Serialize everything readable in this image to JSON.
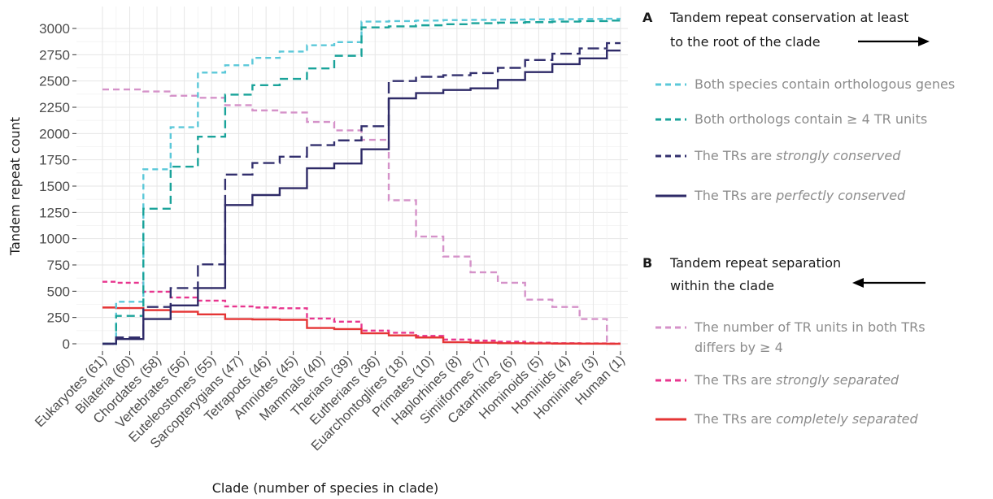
{
  "chart_data": {
    "type": "line",
    "step": true,
    "xlabel": "Clade (number of species in clade)",
    "ylabel": "Tandem repeat count",
    "ylim": [
      0,
      3000
    ],
    "yticks": [
      0,
      250,
      500,
      750,
      1000,
      1250,
      1500,
      1750,
      2000,
      2250,
      2500,
      2750,
      3000
    ],
    "grid": true,
    "categories": [
      "Eukaryotes (61)",
      "Bilateria (60)",
      "Chordates (58)",
      "Vertebrates (56)",
      "Euteleostomes (55)",
      "Sarcopterygians (47)",
      "Tetrapods (46)",
      "Amniotes (45)",
      "Mammals (40)",
      "Therians (39)",
      "Eutherians (36)",
      "Euarchontoglires (18)",
      "Primates (10)",
      "Haplorhines (8)",
      "Simiiformes (7)",
      "Catarrhines (6)",
      "Hominoids (5)",
      "Hominids (4)",
      "Hominines (3)",
      "Human (1)"
    ],
    "series": [
      {
        "name": "Both species contain orthologous genes",
        "color": "#5bc8d9",
        "dash": "7,5",
        "values": [
          0,
          400,
          1660,
          2060,
          2580,
          2650,
          2720,
          2780,
          2840,
          2870,
          3065,
          3070,
          3075,
          3080,
          3082,
          3084,
          3086,
          3088,
          3090,
          3092
        ]
      },
      {
        "name": "Both orthologs contain ≥ 4 TR units",
        "color": "#1aa39a",
        "dash": "10,6",
        "values": [
          0,
          265,
          1285,
          1685,
          1970,
          2370,
          2460,
          2520,
          2620,
          2740,
          3010,
          3020,
          3030,
          3040,
          3050,
          3055,
          3060,
          3065,
          3070,
          3075
        ]
      },
      {
        "name": "The TRs are strongly conserved",
        "color": "#33306e",
        "dash": "14,6",
        "values": [
          0,
          60,
          350,
          530,
          755,
          1610,
          1720,
          1780,
          1890,
          1935,
          2070,
          2500,
          2540,
          2555,
          2575,
          2625,
          2700,
          2760,
          2810,
          2860
        ]
      },
      {
        "name": "The TRs are perfectly conserved",
        "color": "#2e2a67",
        "dash": "",
        "values": [
          0,
          45,
          235,
          365,
          530,
          1320,
          1415,
          1480,
          1670,
          1715,
          1850,
          2335,
          2385,
          2415,
          2430,
          2510,
          2585,
          2660,
          2715,
          2790
        ]
      },
      {
        "name": "The number of TR units in both TRs differs by ≥ 4",
        "color": "#d592c9",
        "dash": "8,5",
        "values": [
          2420,
          2420,
          2400,
          2360,
          2340,
          2270,
          2220,
          2200,
          2110,
          2030,
          1940,
          1365,
          1020,
          830,
          680,
          580,
          420,
          350,
          235,
          0
        ]
      },
      {
        "name": "The TRs are strongly separated",
        "color": "#e8368f",
        "dash": "6,4",
        "values": [
          590,
          580,
          495,
          440,
          410,
          355,
          345,
          338,
          240,
          210,
          125,
          105,
          75,
          40,
          30,
          20,
          10,
          5,
          3,
          2
        ]
      },
      {
        "name": "The TRs are completely separated",
        "color": "#e53535",
        "dash": "",
        "values": [
          345,
          340,
          320,
          305,
          280,
          235,
          232,
          228,
          150,
          140,
          100,
          80,
          60,
          15,
          10,
          5,
          3,
          2,
          1,
          0
        ]
      }
    ]
  },
  "legend": {
    "section_a": {
      "letter": "A",
      "line1": "Tandem repeat conservation at least",
      "line2": "to the root of the clade"
    },
    "section_b": {
      "letter": "B",
      "line1": "Tandem repeat separation",
      "line2": "within the clade"
    },
    "items_a": [
      {
        "pre": "Both species contain orthologous genes",
        "em": "",
        "post": ""
      },
      {
        "pre": "Both orthologs contain ≥ 4 TR units",
        "em": "",
        "post": ""
      },
      {
        "pre": "The TRs are ",
        "em": "strongly conserved",
        "post": ""
      },
      {
        "pre": "The TRs are ",
        "em": "perfectly conserved",
        "post": ""
      }
    ],
    "items_b": [
      {
        "pre": "The number of TR units in both TRs",
        "em": "",
        "post": "",
        "line2": "differs by ≥ 4"
      },
      {
        "pre": "The TRs are ",
        "em": "strongly separated",
        "post": ""
      },
      {
        "pre": "The TRs are ",
        "em": "completely separated",
        "post": ""
      }
    ]
  }
}
